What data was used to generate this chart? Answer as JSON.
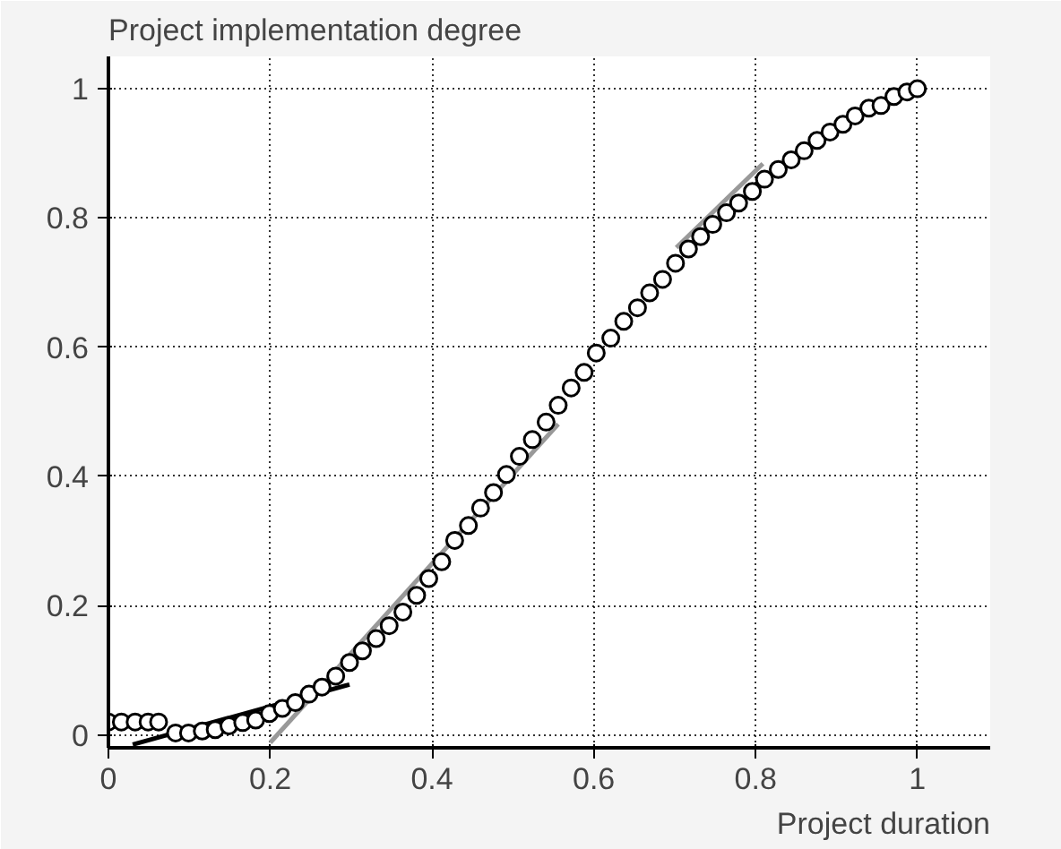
{
  "chart_data": {
    "type": "line",
    "xlabel": "Project duration",
    "ylabel": "Project implementation degree",
    "xlim": [
      0,
      1.09
    ],
    "ylim": [
      -0.02,
      1.05
    ],
    "xticks": [
      0,
      0.2,
      0.4,
      0.6,
      0.8,
      1
    ],
    "yticks": [
      0,
      0.2,
      0.4,
      0.6,
      0.8,
      1
    ],
    "grid": true,
    "series": [
      {
        "color": "#999999",
        "x": [
          0.2,
          0.556
        ],
        "values": [
          -0.012,
          0.481
        ]
      },
      {
        "color": "#999999",
        "x": [
          0.702,
          0.809
        ],
        "values": [
          0.754,
          0.884
        ]
      },
      {
        "color": "#000000",
        "x": [
          0.03,
          0.298
        ],
        "values": [
          -0.015,
          0.078
        ]
      },
      {
        "type": "scatter",
        "marker": "circle",
        "color": "#000000",
        "x": [
          0,
          0.016,
          0.033,
          0.049,
          0.062,
          0.083,
          0.099,
          0.116,
          0.132,
          0.149,
          0.166,
          0.182,
          0.199,
          0.215,
          0.231,
          0.248,
          0.264,
          0.281,
          0.298,
          0.314,
          0.331,
          0.347,
          0.364,
          0.381,
          0.396,
          0.412,
          0.428,
          0.445,
          0.46,
          0.476,
          0.492,
          0.508,
          0.524,
          0.541,
          0.556,
          0.572,
          0.588,
          0.603,
          0.621,
          0.637,
          0.654,
          0.669,
          0.685,
          0.701,
          0.717,
          0.732,
          0.747,
          0.764,
          0.779,
          0.796,
          0.811,
          0.828,
          0.844,
          0.86,
          0.876,
          0.892,
          0.908,
          0.923,
          0.94,
          0.955,
          0.971,
          0.987,
          1.0
        ],
        "values": [
          0.02,
          0.02,
          0.02,
          0.02,
          0.02,
          0.003,
          0.003,
          0.006,
          0.008,
          0.014,
          0.019,
          0.023,
          0.033,
          0.041,
          0.05,
          0.063,
          0.074,
          0.091,
          0.112,
          0.13,
          0.149,
          0.169,
          0.19,
          0.216,
          0.242,
          0.268,
          0.301,
          0.324,
          0.351,
          0.375,
          0.403,
          0.431,
          0.457,
          0.484,
          0.51,
          0.537,
          0.561,
          0.591,
          0.614,
          0.64,
          0.661,
          0.684,
          0.705,
          0.73,
          0.752,
          0.771,
          0.79,
          0.808,
          0.823,
          0.841,
          0.86,
          0.875,
          0.89,
          0.904,
          0.92,
          0.933,
          0.945,
          0.958,
          0.97,
          0.974,
          0.988,
          0.995,
          1.0
        ]
      }
    ]
  }
}
